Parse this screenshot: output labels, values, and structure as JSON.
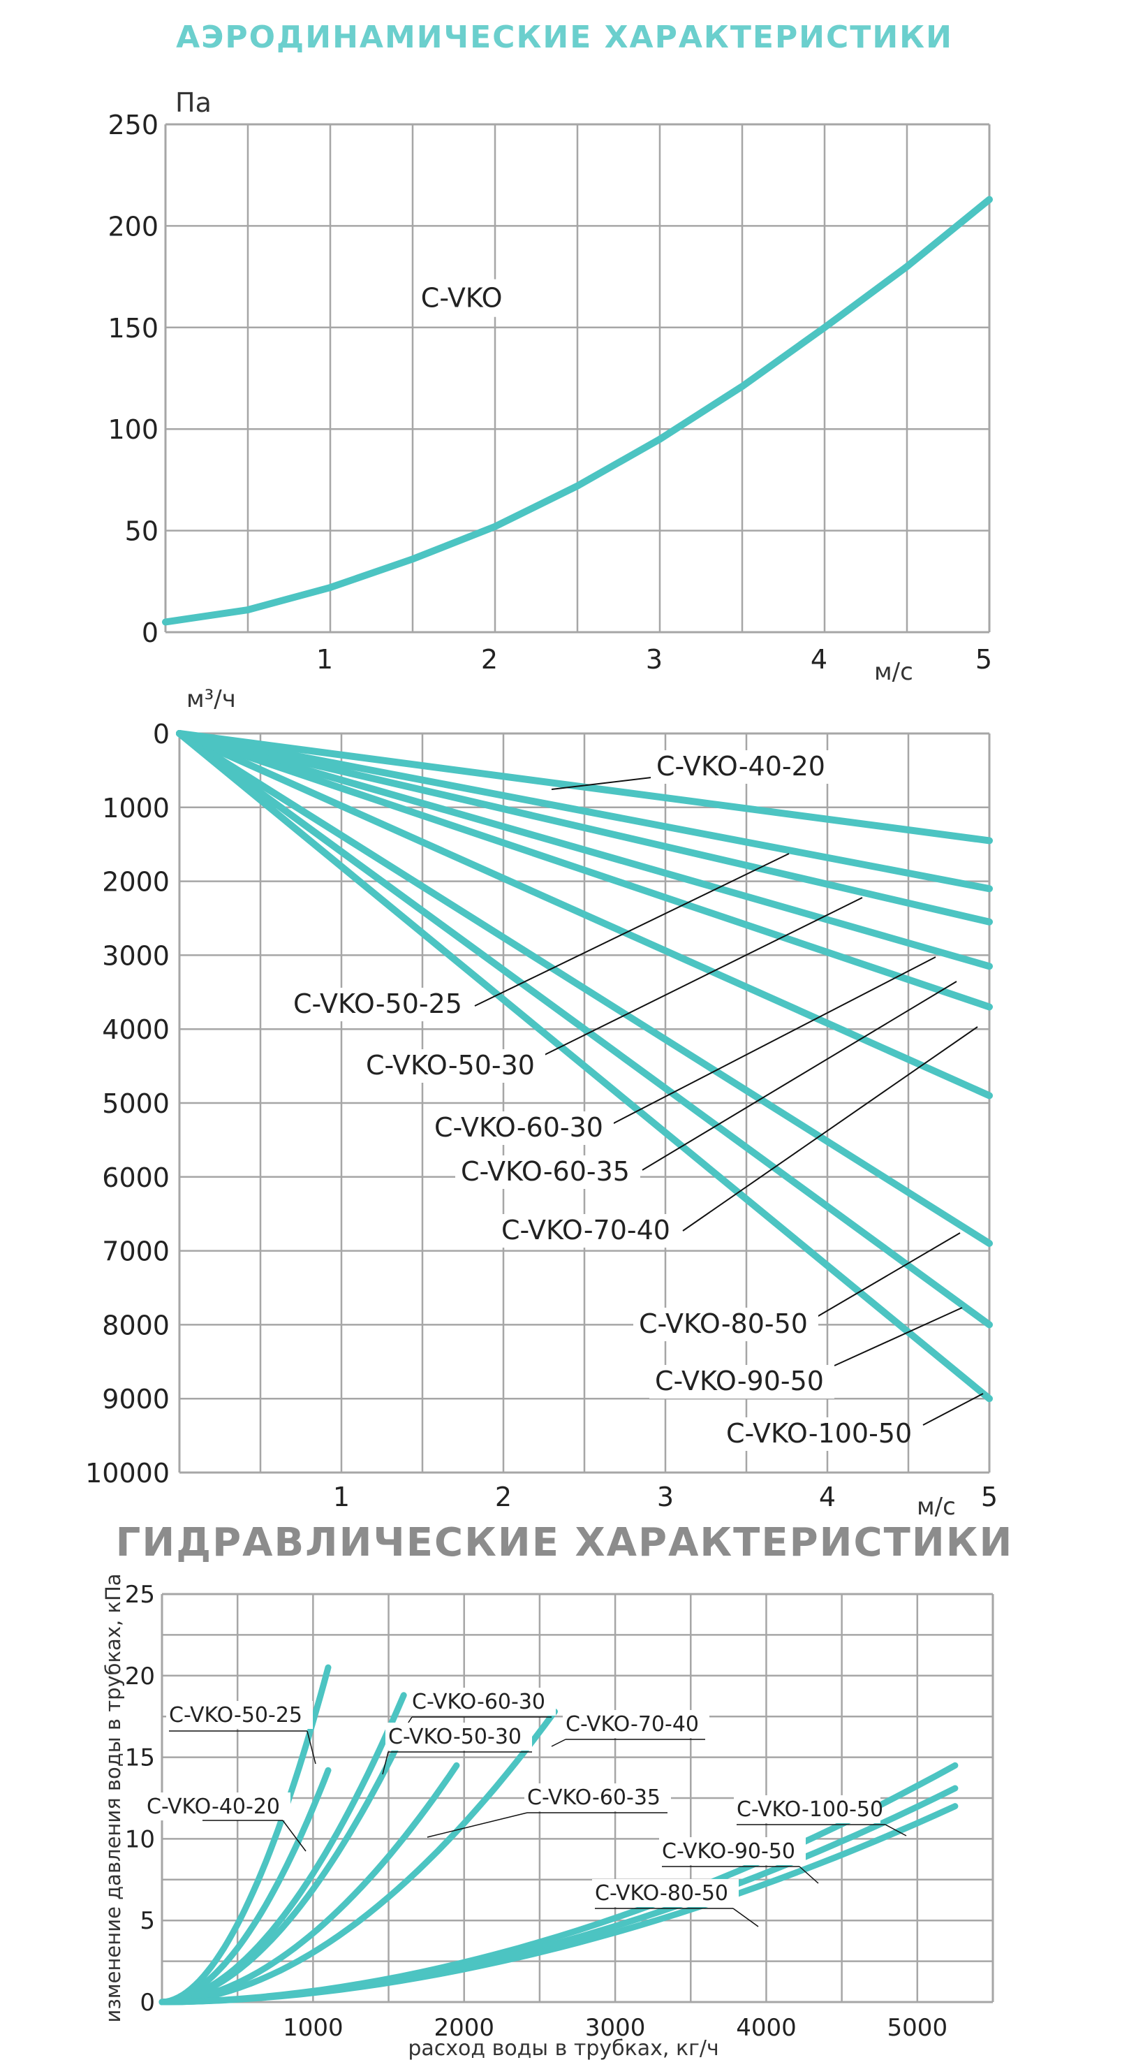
{
  "colors": {
    "curve": "#4cc4c2",
    "grid": "#a6a6a6",
    "title_aero": "#6bcfcd",
    "title_hydro": "#8c8c8c",
    "text": "#222222"
  },
  "titles": {
    "aerodynamic": "АЭРОДИНАМИЧЕСКИЕ ХАРАКТЕРИСТИКИ",
    "hydraulic": "ГИДРАВЛИЧЕСКИЕ ХАРАКТЕРИСТИКИ"
  },
  "chart_data": [
    {
      "type": "line",
      "ylabel": "Па",
      "xlabel": "м/с",
      "xlim": [
        0,
        5
      ],
      "ylim": [
        0,
        250
      ],
      "xticks": [
        "1",
        "2",
        "3",
        "4",
        "5"
      ],
      "yticks": [
        "0",
        "50",
        "100",
        "150",
        "200",
        "250"
      ],
      "grid": true,
      "series": [
        {
          "name": "C-VKO",
          "x": [
            0,
            0.5,
            1,
            1.5,
            2,
            2.5,
            3,
            3.5,
            4,
            4.5,
            5
          ],
          "values": [
            5,
            11,
            22,
            36,
            52,
            72,
            95,
            121,
            150,
            180,
            213
          ]
        }
      ]
    },
    {
      "type": "line",
      "ylabel": "м³/ч",
      "xlabel": "м/с",
      "xlim": [
        0,
        5
      ],
      "ylim": [
        0,
        10000
      ],
      "y_inverted": true,
      "xticks": [
        "1",
        "2",
        "3",
        "4",
        "5"
      ],
      "yticks": [
        "0",
        "1000",
        "2000",
        "3000",
        "4000",
        "5000",
        "6000",
        "7000",
        "8000",
        "9000",
        "10000"
      ],
      "grid": true,
      "series": [
        {
          "name": "C-VKO-40-20",
          "x": [
            0,
            5
          ],
          "values": [
            0,
            1450
          ]
        },
        {
          "name": "C-VKO-50-25",
          "x": [
            0,
            5
          ],
          "values": [
            0,
            2100
          ]
        },
        {
          "name": "C-VKO-50-30",
          "x": [
            0,
            5
          ],
          "values": [
            0,
            2550
          ]
        },
        {
          "name": "C-VKO-60-30",
          "x": [
            0,
            5
          ],
          "values": [
            0,
            3150
          ]
        },
        {
          "name": "C-VKO-60-35",
          "x": [
            0,
            5
          ],
          "values": [
            0,
            3700
          ]
        },
        {
          "name": "C-VKO-70-40",
          "x": [
            0,
            5
          ],
          "values": [
            0,
            4900
          ]
        },
        {
          "name": "C-VKO-80-50",
          "x": [
            0,
            5
          ],
          "values": [
            0,
            6900
          ]
        },
        {
          "name": "C-VKO-90-50",
          "x": [
            0,
            5
          ],
          "values": [
            0,
            8000
          ]
        },
        {
          "name": "C-VKO-100-50",
          "x": [
            0,
            5
          ],
          "values": [
            0,
            9000
          ]
        }
      ]
    },
    {
      "type": "line",
      "ylabel": "изменение давления воды в трубках, кПа",
      "xlabel": "расход воды в трубках, кг/ч",
      "xlim": [
        0,
        5500
      ],
      "ylim": [
        0,
        25
      ],
      "xticks": [
        "1000",
        "2000",
        "3000",
        "4000",
        "5000"
      ],
      "yticks": [
        "0",
        "5",
        "10",
        "15",
        "20",
        "25"
      ],
      "grid": true,
      "series": [
        {
          "name": "C-VKO-50-25",
          "x": [
            0,
            1100
          ],
          "values": [
            0,
            20.5
          ]
        },
        {
          "name": "C-VKO-40-20",
          "x": [
            0,
            1100
          ],
          "values": [
            0,
            14.2
          ]
        },
        {
          "name": "C-VKO-60-30",
          "x": [
            0,
            1600
          ],
          "values": [
            0,
            18.8
          ]
        },
        {
          "name": "C-VKO-50-30",
          "x": [
            0,
            1600
          ],
          "values": [
            0,
            16.5
          ]
        },
        {
          "name": "C-VKO-70-40",
          "x": [
            0,
            2600
          ],
          "values": [
            0,
            17.8
          ]
        },
        {
          "name": "C-VKO-60-35",
          "x": [
            0,
            1950
          ],
          "values": [
            0,
            14.5
          ]
        },
        {
          "name": "C-VKO-100-50",
          "x": [
            0,
            5250
          ],
          "values": [
            0,
            14.5
          ]
        },
        {
          "name": "C-VKO-90-50",
          "x": [
            0,
            5250
          ],
          "values": [
            0,
            13.1
          ]
        },
        {
          "name": "C-VKO-80-50",
          "x": [
            0,
            5250
          ],
          "values": [
            0,
            12.0
          ]
        }
      ]
    }
  ]
}
